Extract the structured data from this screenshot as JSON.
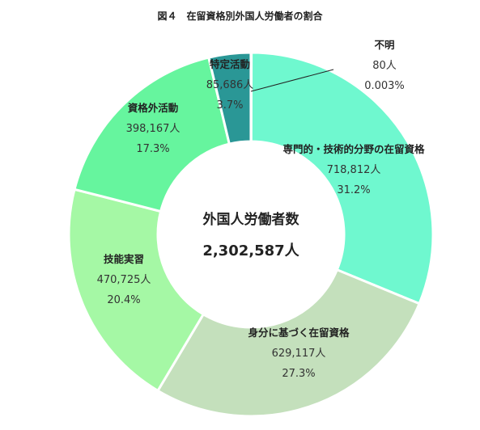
{
  "title": "図４　在留資格別外国人労働者の割合",
  "center": {
    "label": "外国人労働者数",
    "total": "2,302,587人"
  },
  "chart_data": {
    "type": "pie",
    "title": "図４　在留資格別外国人労働者の割合",
    "total": 2302587,
    "slices": [
      {
        "label": "専門的・技術的分野の在留資格",
        "value": 718812,
        "value_text": "718,812人",
        "percent": 31.2,
        "percent_text": "31.2%",
        "color": "#6ff8cf"
      },
      {
        "label": "身分に基づく在留資格",
        "value": 629117,
        "value_text": "629,117人",
        "percent": 27.3,
        "percent_text": "27.3%",
        "color": "#c4e0bc"
      },
      {
        "label": "技能実習",
        "value": 470725,
        "value_text": "470,725人",
        "percent": 20.4,
        "percent_text": "20.4%",
        "color": "#a5f8a5"
      },
      {
        "label": "資格外活動",
        "value": 398167,
        "value_text": "398,167人",
        "percent": 17.3,
        "percent_text": "17.3%",
        "color": "#66f59e"
      },
      {
        "label": "特定活動",
        "value": 85686,
        "value_text": "85,686人",
        "percent": 3.7,
        "percent_text": "3.7%",
        "color": "#2a9796"
      },
      {
        "label": "不明",
        "value": 80,
        "value_text": "80人",
        "percent": 0.003,
        "percent_text": "0.003%",
        "color": "#6ff8cf"
      }
    ]
  }
}
